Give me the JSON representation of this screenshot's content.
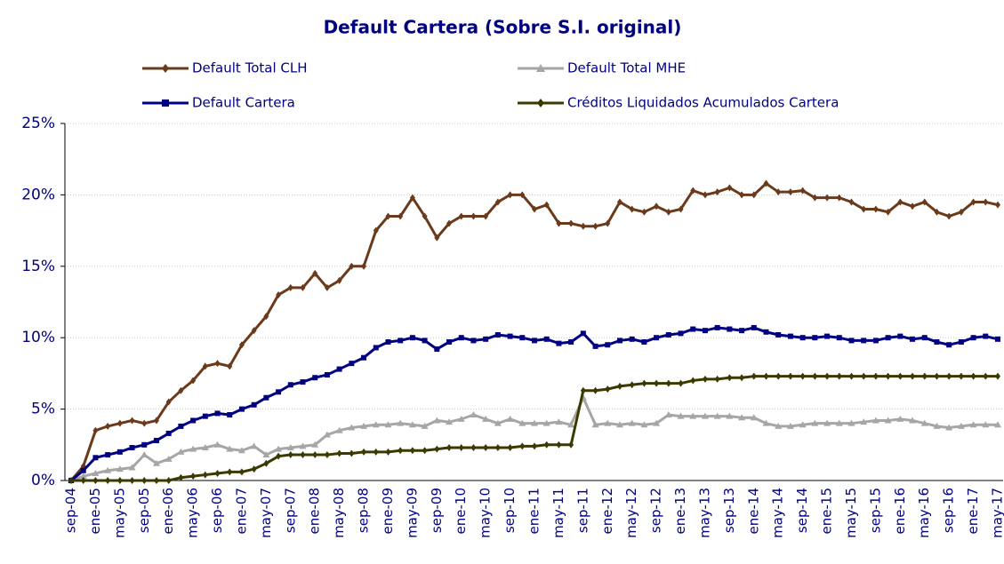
{
  "chart_data": {
    "type": "line",
    "title": "Default Cartera (Sobre S.I. original)",
    "categories": [
      "sep-04",
      null,
      "ene-05",
      null,
      "may-05",
      null,
      "sep-05",
      null,
      "ene-06",
      null,
      "may-06",
      null,
      "sep-06",
      null,
      "ene-07",
      null,
      "may-07",
      null,
      "sep-07",
      null,
      "ene-08",
      null,
      "may-08",
      null,
      "sep-08",
      null,
      "ene-09",
      null,
      "may-09",
      null,
      "sep-09",
      null,
      "ene-10",
      null,
      "may-10",
      null,
      "sep-10",
      null,
      "ene-11",
      null,
      "may-11",
      null,
      "sep-11",
      null,
      "ene-12",
      null,
      "may-12",
      null,
      "sep-12",
      null,
      "ene-13",
      null,
      "may-13",
      null,
      "sep-13",
      null,
      "ene-14",
      null,
      "may-14",
      null,
      "sep-14",
      null,
      "ene-15",
      null,
      "may-15",
      null,
      "sep-15",
      null,
      "ene-16",
      null,
      "may-16",
      null,
      "sep-16",
      null,
      "ene-17",
      null,
      "may-17"
    ],
    "series": [
      {
        "name": "Default Total CLH",
        "color": "#6b3a1a",
        "marker": "diamond",
        "values": [
          0,
          1.0,
          3.5,
          3.8,
          4.0,
          4.2,
          4.0,
          4.2,
          5.5,
          6.3,
          7.0,
          8.0,
          8.2,
          8.0,
          9.5,
          10.5,
          11.5,
          13.0,
          13.5,
          13.5,
          14.5,
          13.5,
          14.0,
          15.0,
          15.0,
          17.5,
          18.5,
          18.5,
          19.8,
          18.5,
          17.0,
          18.0,
          18.5,
          18.5,
          18.5,
          19.5,
          20.0,
          20.0,
          19.0,
          19.3,
          18.0,
          18.0,
          17.8,
          17.8,
          18.0,
          19.5,
          19.0,
          18.8,
          19.2,
          18.8,
          19.0,
          20.3,
          20.0,
          20.2,
          20.5,
          20.0,
          20.0,
          20.8,
          20.2,
          20.2,
          20.3,
          19.8,
          19.8,
          19.8,
          19.5,
          19.0,
          19.0,
          18.8,
          19.5,
          19.2,
          19.5,
          18.8,
          18.5,
          18.8,
          19.5,
          19.5,
          19.3
        ]
      },
      {
        "name": "Default Total MHE",
        "color": "#a6a6a6",
        "marker": "triangle",
        "values": [
          0,
          0.3,
          0.5,
          0.7,
          0.8,
          0.9,
          1.8,
          1.2,
          1.5,
          2.0,
          2.2,
          2.3,
          2.5,
          2.2,
          2.1,
          2.4,
          1.8,
          2.2,
          2.3,
          2.4,
          2.5,
          3.2,
          3.5,
          3.7,
          3.8,
          3.9,
          3.9,
          4.0,
          3.9,
          3.8,
          4.2,
          4.1,
          4.3,
          4.6,
          4.3,
          4.0,
          4.3,
          4.0,
          4.0,
          4.0,
          4.1,
          3.9,
          5.8,
          3.9,
          4.0,
          3.9,
          4.0,
          3.9,
          4.0,
          4.6,
          4.5,
          4.5,
          4.5,
          4.5,
          4.5,
          4.4,
          4.4,
          4.0,
          3.8,
          3.8,
          3.9,
          4.0,
          4.0,
          4.0,
          4.0,
          4.1,
          4.2,
          4.2,
          4.3,
          4.2,
          4.0,
          3.8,
          3.7,
          3.8,
          3.9,
          3.9,
          3.9
        ]
      },
      {
        "name": "Default Cartera",
        "color": "#000080",
        "marker": "square",
        "values": [
          0,
          0.7,
          1.6,
          1.8,
          2.0,
          2.3,
          2.5,
          2.8,
          3.3,
          3.8,
          4.2,
          4.5,
          4.7,
          4.6,
          5.0,
          5.3,
          5.8,
          6.2,
          6.7,
          6.9,
          7.2,
          7.4,
          7.8,
          8.2,
          8.6,
          9.3,
          9.7,
          9.8,
          10.0,
          9.8,
          9.2,
          9.7,
          10.0,
          9.8,
          9.9,
          10.2,
          10.1,
          10.0,
          9.8,
          9.9,
          9.6,
          9.7,
          10.3,
          9.4,
          9.5,
          9.8,
          9.9,
          9.7,
          10.0,
          10.2,
          10.3,
          10.6,
          10.5,
          10.7,
          10.6,
          10.5,
          10.7,
          10.4,
          10.2,
          10.1,
          10.0,
          10.0,
          10.1,
          10.0,
          9.8,
          9.8,
          9.8,
          10.0,
          10.1,
          9.9,
          10.0,
          9.7,
          9.5,
          9.7,
          10.0,
          10.1,
          9.9
        ]
      },
      {
        "name": "Créditos Liquidados Acumulados Cartera",
        "color": "#3a3a00",
        "marker": "diamond",
        "values": [
          0,
          0,
          0,
          0,
          0,
          0,
          0,
          0,
          0,
          0.2,
          0.3,
          0.4,
          0.5,
          0.6,
          0.6,
          0.8,
          1.2,
          1.7,
          1.8,
          1.8,
          1.8,
          1.8,
          1.9,
          1.9,
          2.0,
          2.0,
          2.0,
          2.1,
          2.1,
          2.1,
          2.2,
          2.3,
          2.3,
          2.3,
          2.3,
          2.3,
          2.3,
          2.4,
          2.4,
          2.5,
          2.5,
          2.5,
          6.3,
          6.3,
          6.4,
          6.6,
          6.7,
          6.8,
          6.8,
          6.8,
          6.8,
          7.0,
          7.1,
          7.1,
          7.2,
          7.2,
          7.3,
          7.3,
          7.3,
          7.3,
          7.3,
          7.3,
          7.3,
          7.3,
          7.3,
          7.3,
          7.3,
          7.3,
          7.3,
          7.3,
          7.3,
          7.3,
          7.3,
          7.3,
          7.3,
          7.3,
          7.3
        ]
      }
    ],
    "ylim": [
      0,
      25
    ],
    "yticks": [
      {
        "value": 0,
        "label": "0%"
      },
      {
        "value": 5,
        "label": "5%"
      },
      {
        "value": 10,
        "label": "10%"
      },
      {
        "value": 15,
        "label": "15%"
      },
      {
        "value": 20,
        "label": "20%"
      },
      {
        "value": 25,
        "label": "25%"
      }
    ],
    "grid": true,
    "legend": "top"
  }
}
